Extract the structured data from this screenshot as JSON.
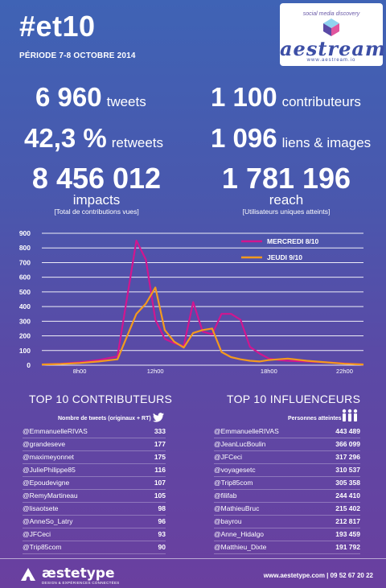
{
  "header": {
    "title": "#et10",
    "period": "PÉRIODE 7-8 OCTOBRE 2014",
    "logo_tagline": "social media discovery",
    "logo_name": "aestream",
    "logo_url": "www.aestream.io"
  },
  "stats": {
    "tweets": {
      "value": "6 960",
      "label": "tweets"
    },
    "contributeurs": {
      "value": "1 100",
      "label": "contributeurs"
    },
    "retweets": {
      "value": "42,3 %",
      "label": "retweets"
    },
    "liens": {
      "value": "1 096",
      "label": "liens & images"
    },
    "impacts": {
      "value": "8 456 012",
      "label": "impacts",
      "sub": "[Total de contributions vues]"
    },
    "reach": {
      "value": "1 781 196",
      "label": "reach",
      "sub": "[Utilisateurs uniques atteints]"
    }
  },
  "chart_data": {
    "type": "line",
    "x": [
      6,
      7,
      8,
      9,
      10,
      11,
      11.5,
      12,
      12.5,
      13,
      13.5,
      14,
      14.5,
      15,
      15.5,
      16,
      16.5,
      17,
      17.5,
      18,
      18.5,
      19,
      20,
      21,
      22,
      23
    ],
    "xticks": [
      8,
      12,
      18,
      22
    ],
    "xtick_labels": [
      "8h00",
      "12h00",
      "18h00",
      "22h00"
    ],
    "yticks": [
      0,
      100,
      200,
      300,
      400,
      500,
      600,
      700,
      800,
      900
    ],
    "ylim": [
      0,
      900
    ],
    "xlim": [
      6,
      23
    ],
    "legend_position": "top-right",
    "series": [
      {
        "name": "MERCREDI 8/10",
        "color": "#d1168f",
        "values": [
          5,
          10,
          20,
          35,
          60,
          850,
          720,
          310,
          180,
          150,
          130,
          430,
          230,
          210,
          350,
          350,
          310,
          125,
          80,
          45,
          35,
          30,
          25,
          20,
          12,
          5
        ]
      },
      {
        "name": "JEUDI 9/10",
        "color": "#f39a1e",
        "values": [
          5,
          8,
          15,
          25,
          40,
          350,
          420,
          530,
          240,
          160,
          120,
          220,
          240,
          250,
          90,
          55,
          40,
          30,
          25,
          35,
          40,
          45,
          30,
          20,
          10,
          5
        ]
      }
    ]
  },
  "contributeurs": {
    "title": "TOP 10 CONTRIBUTEURS",
    "col_head": "Nombre de tweets (originaux + RT)",
    "rows": [
      {
        "name": "@EmmanuelleRIVAS",
        "value": "333"
      },
      {
        "name": "@grandeseve",
        "value": "177"
      },
      {
        "name": "@maximeyonnet",
        "value": "175"
      },
      {
        "name": "@JuliePhilippe85",
        "value": "116"
      },
      {
        "name": "@Epoudevigne",
        "value": "107"
      },
      {
        "name": "@RemyMartineau",
        "value": "105"
      },
      {
        "name": "@lisaotsete",
        "value": "98"
      },
      {
        "name": "@AnneSo_Latry",
        "value": "96"
      },
      {
        "name": "@JFCeci",
        "value": "93"
      },
      {
        "name": "@Trip85com",
        "value": "90"
      }
    ]
  },
  "influenceurs": {
    "title": "TOP 10 INFLUENCEURS",
    "col_head": "Personnes atteintes",
    "rows": [
      {
        "name": "@EmmanuelleRIVAS",
        "value": "443 489"
      },
      {
        "name": "@JeanLucBoulin",
        "value": "366 099"
      },
      {
        "name": "@JFCeci",
        "value": "317 296"
      },
      {
        "name": "@voyagesetc",
        "value": "310 537"
      },
      {
        "name": "@Trip85com",
        "value": "305 358"
      },
      {
        "name": "@filifab",
        "value": "244 410"
      },
      {
        "name": "@MathieuBruc",
        "value": "215 402"
      },
      {
        "name": "@bayrou",
        "value": "212 817"
      },
      {
        "name": "@Anne_Hidalgo",
        "value": "193 459"
      },
      {
        "name": "@Matthieu_Dixte",
        "value": "191 792"
      }
    ]
  },
  "footer": {
    "brand": "æstetype",
    "brand_sub": "DESIGN & EXPÉRIENCES CONNECTÉES",
    "contact": "www.aestetype.com | 09 52 67 20 22"
  },
  "icons": {
    "twitter": "twitter-bird-icon",
    "people": "people-group-icon",
    "logo_mark": "cube-logo-icon",
    "brand_mark": "aestetype-logo-icon"
  }
}
